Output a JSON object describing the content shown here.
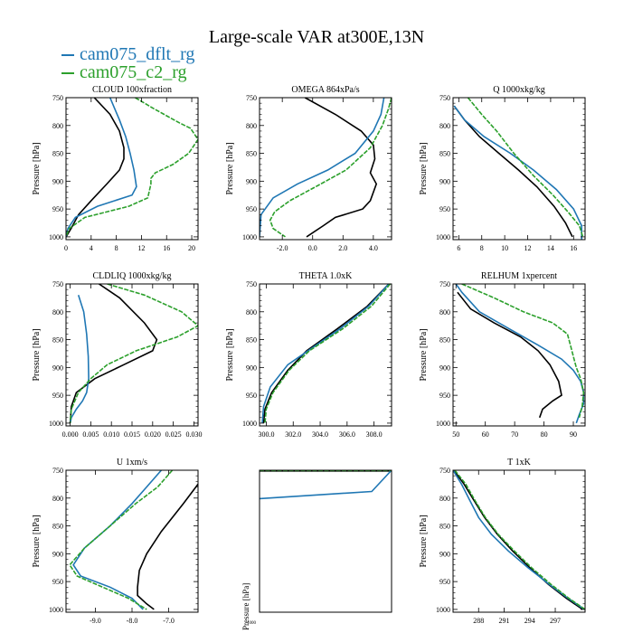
{
  "figure": {
    "title": "Large-scale VAR at300E,13N"
  },
  "legend": [
    {
      "name": "cam075_dflt_rg",
      "color": "#1f77b4"
    },
    {
      "name": "cam075_c2_rg",
      "color": "#2ca02c"
    }
  ],
  "colors": {
    "obs": "#000000",
    "dflt": "#1f77b4",
    "c2": "#2ca02c"
  },
  "chart_data": [
    {
      "type": "line",
      "title": "CLOUD  100xfraction",
      "ylabel": "Pressure [hPa]",
      "xlim": [
        0,
        21
      ],
      "ylim": [
        750,
        1005
      ],
      "xticks": [
        0,
        4,
        8,
        12,
        16,
        20
      ],
      "xtick_labels": [
        "0",
        "4",
        "8",
        "12",
        "16",
        "20"
      ],
      "yticks": [
        750,
        800,
        850,
        900,
        950,
        1000
      ],
      "ytick_labels": [
        "750",
        "800",
        "850",
        "900",
        "950",
        "1000"
      ],
      "series": [
        {
          "key": "obs",
          "x": [
            4.5,
            7,
            8.5,
            9.2,
            9.2,
            8.5,
            6.5,
            4,
            2,
            0.8,
            0
          ],
          "y": [
            750,
            780,
            810,
            840,
            860,
            880,
            905,
            935,
            960,
            985,
            1000
          ]
        },
        {
          "key": "dflt",
          "x": [
            7,
            8.5,
            9.5,
            10.2,
            10.8,
            11.2,
            10.5,
            5,
            1.5,
            0.3,
            0
          ],
          "y": [
            750,
            790,
            820,
            850,
            880,
            910,
            925,
            945,
            965,
            985,
            1000
          ]
        },
        {
          "key": "c2",
          "x": [
            11,
            14,
            18,
            19.8,
            21,
            19.5,
            17,
            14.2,
            13.5,
            13.5,
            13,
            10,
            3,
            0.5,
            0
          ],
          "y": [
            750,
            770,
            795,
            805,
            825,
            850,
            870,
            885,
            895,
            905,
            930,
            945,
            965,
            985,
            1000
          ]
        }
      ]
    },
    {
      "type": "line",
      "title": "OMEGA  864xPa/s",
      "ylabel": "Pressure [hPa]",
      "xlim": [
        -3.5,
        5.2
      ],
      "ylim": [
        750,
        1005
      ],
      "xticks": [
        -2,
        0,
        2,
        4
      ],
      "xtick_labels": [
        "-2.0",
        "0.0",
        "2.0",
        "4.0"
      ],
      "yticks": [
        750,
        800,
        850,
        900,
        950,
        1000
      ],
      "ytick_labels": [
        "750",
        "800",
        "850",
        "900",
        "950",
        "1000"
      ],
      "series": [
        {
          "key": "obs",
          "x": [
            -0.5,
            1.5,
            3.2,
            4.0,
            4.1,
            3.8,
            4.2,
            3.8,
            3.3,
            1.5,
            0.7,
            -0.4
          ],
          "y": [
            750,
            780,
            810,
            835,
            860,
            885,
            905,
            935,
            950,
            965,
            980,
            1000
          ]
        },
        {
          "key": "dflt",
          "x": [
            4.7,
            4.5,
            4.0,
            2.8,
            1.0,
            -1.0,
            -2.6,
            -3.4,
            -3.5
          ],
          "y": [
            750,
            780,
            810,
            850,
            880,
            905,
            930,
            960,
            1000
          ]
        },
        {
          "key": "c2",
          "x": [
            5.2,
            5.0,
            4.6,
            3.8,
            2.2,
            0.2,
            -1.5,
            -2.5,
            -2.8,
            -2.6,
            -1.8
          ],
          "y": [
            750,
            770,
            800,
            840,
            880,
            910,
            935,
            955,
            970,
            985,
            1000
          ]
        }
      ]
    },
    {
      "type": "line",
      "title": "Q  1000xkg/kg",
      "ylabel": "Pressure [hPa]",
      "xlim": [
        5.5,
        17
      ],
      "ylim": [
        750,
        1005
      ],
      "xticks": [
        6,
        8,
        10,
        12,
        14,
        16
      ],
      "xtick_labels": [
        "6",
        "8",
        "10",
        "12",
        "14",
        "16"
      ],
      "yticks": [
        750,
        800,
        850,
        900,
        950,
        1000
      ],
      "ytick_labels": [
        "750",
        "800",
        "850",
        "900",
        "950",
        "1000"
      ],
      "series": [
        {
          "key": "obs",
          "x": [
            5.6,
            6.5,
            7.8,
            9.5,
            11.2,
            12.8,
            14.3,
            15.3,
            15.9
          ],
          "y": [
            765,
            790,
            820,
            850,
            880,
            910,
            945,
            975,
            1000
          ]
        },
        {
          "key": "dflt",
          "x": [
            5.6,
            6.5,
            8.2,
            10.5,
            12.5,
            14.5,
            16.0,
            16.7,
            16.7
          ],
          "y": [
            765,
            790,
            820,
            850,
            880,
            915,
            950,
            980,
            1005
          ]
        },
        {
          "key": "c2",
          "x": [
            6.8,
            8.0,
            9.3,
            10.8,
            12.5,
            14.2,
            15.5,
            16.5,
            16.8
          ],
          "y": [
            750,
            780,
            810,
            850,
            890,
            925,
            955,
            980,
            1000
          ]
        }
      ]
    },
    {
      "type": "line",
      "title": "CLDLIQ  1000xkg/kg",
      "ylabel": "Pressure [hPa]",
      "xlim": [
        -0.001,
        0.031
      ],
      "ylim": [
        750,
        1005
      ],
      "xticks": [
        0,
        0.005,
        0.01,
        0.015,
        0.02,
        0.025,
        0.03
      ],
      "xtick_labels": [
        "0.000",
        "0.005",
        "0.010",
        "0.015",
        "0.020",
        "0.025",
        "0.030"
      ],
      "yticks": [
        750,
        800,
        850,
        900,
        950,
        1000
      ],
      "ytick_labels": [
        "750",
        "800",
        "850",
        "900",
        "950",
        "1000"
      ],
      "series": [
        {
          "key": "obs",
          "x": [
            0.007,
            0.012,
            0.018,
            0.021,
            0.02,
            0.013,
            0.006,
            0.0015,
            0.0003,
            0
          ],
          "y": [
            750,
            775,
            820,
            850,
            870,
            895,
            920,
            945,
            970,
            1000
          ]
        },
        {
          "key": "dflt",
          "x": [
            0.002,
            0.0033,
            0.004,
            0.0044,
            0.0045,
            0.004,
            0.003,
            0.0015,
            0.0003,
            0
          ],
          "y": [
            770,
            800,
            840,
            880,
            920,
            945,
            960,
            975,
            990,
            1000
          ]
        },
        {
          "key": "c2",
          "x": [
            0.009,
            0.018,
            0.027,
            0.031,
            0.026,
            0.016,
            0.009,
            0.005,
            0.002,
            0.0003,
            0
          ],
          "y": [
            750,
            770,
            800,
            825,
            845,
            870,
            895,
            920,
            945,
            975,
            1000
          ]
        }
      ]
    },
    {
      "type": "line",
      "title": "THETA  1.0xK",
      "ylabel": "Pressure [hPa]",
      "xlim": [
        299.5,
        309.3
      ],
      "ylim": [
        750,
        1005
      ],
      "xticks": [
        300,
        302,
        304,
        306,
        308
      ],
      "xtick_labels": [
        "300.0",
        "302.0",
        "304.0",
        "306.0",
        "308.0"
      ],
      "yticks": [
        750,
        800,
        850,
        900,
        950,
        1000
      ],
      "ytick_labels": [
        "750",
        "800",
        "850",
        "900",
        "950",
        "1000"
      ],
      "series": [
        {
          "key": "obs",
          "x": [
            309.1,
            307.5,
            305.3,
            303.0,
            301.6,
            300.4,
            299.9,
            299.8
          ],
          "y": [
            750,
            790,
            830,
            870,
            905,
            945,
            975,
            1000
          ]
        },
        {
          "key": "dflt",
          "x": [
            309.1,
            307.6,
            305.5,
            303.4,
            301.6,
            300.3,
            299.8,
            299.7
          ],
          "y": [
            750,
            790,
            830,
            865,
            895,
            935,
            970,
            1000
          ]
        },
        {
          "key": "c2",
          "x": [
            309.2,
            307.8,
            305.7,
            303.2,
            301.7,
            300.5,
            300.0,
            299.9
          ],
          "y": [
            750,
            790,
            830,
            870,
            905,
            945,
            975,
            1000
          ]
        }
      ]
    },
    {
      "type": "line",
      "title": "RELHUM  1xpercent",
      "ylabel": "Pressure [hPa]",
      "xlim": [
        49,
        94
      ],
      "ylim": [
        750,
        1005
      ],
      "xticks": [
        50,
        60,
        70,
        80,
        90
      ],
      "xtick_labels": [
        "50",
        "60",
        "70",
        "80",
        "90"
      ],
      "yticks": [
        750,
        800,
        850,
        900,
        950,
        1000
      ],
      "ytick_labels": [
        "750",
        "800",
        "850",
        "900",
        "950",
        "1000"
      ],
      "series": [
        {
          "key": "obs",
          "x": [
            50.5,
            55,
            63,
            72,
            78,
            82,
            85,
            86,
            83,
            79.5,
            78.5
          ],
          "y": [
            765,
            795,
            820,
            845,
            870,
            895,
            925,
            950,
            960,
            975,
            990
          ]
        },
        {
          "key": "dflt",
          "x": [
            50,
            52,
            58,
            68,
            78,
            86,
            90,
            92.5,
            93.5,
            93.5,
            92,
            91
          ],
          "y": [
            750,
            765,
            800,
            830,
            860,
            885,
            905,
            925,
            945,
            965,
            985,
            1000
          ]
        },
        {
          "key": "c2",
          "x": [
            52,
            63,
            73,
            83,
            88,
            89,
            90,
            91,
            92.5,
            93.5,
            93,
            92
          ],
          "y": [
            750,
            775,
            800,
            820,
            840,
            860,
            880,
            900,
            920,
            945,
            970,
            990
          ]
        }
      ]
    },
    {
      "type": "line",
      "title": "U  1xm/s",
      "ylabel": "Pressure [hPa]",
      "xlim": [
        -9.8,
        -6.2
      ],
      "ylim": [
        750,
        1005
      ],
      "xticks": [
        -9,
        -8,
        -7
      ],
      "xtick_labels": [
        "-9.0",
        "-8.0",
        "-7.0"
      ],
      "yticks": [
        750,
        800,
        850,
        900,
        950,
        1000
      ],
      "ytick_labels": [
        "750",
        "800",
        "850",
        "900",
        "950",
        "1000"
      ],
      "series": [
        {
          "key": "obs",
          "x": [
            -6.2,
            -6.6,
            -7.2,
            -7.6,
            -7.8,
            -7.85,
            -7.85,
            -7.6,
            -7.4
          ],
          "y": [
            775,
            810,
            860,
            900,
            930,
            960,
            975,
            990,
            1000
          ]
        },
        {
          "key": "dflt",
          "x": [
            -7.2,
            -7.6,
            -8.0,
            -8.6,
            -9.3,
            -9.6,
            -9.4,
            -8.6,
            -8.0,
            -7.7
          ],
          "y": [
            750,
            780,
            810,
            850,
            890,
            920,
            940,
            960,
            980,
            1000
          ]
        },
        {
          "key": "c2",
          "x": [
            -6.9,
            -7.3,
            -7.9,
            -8.6,
            -9.3,
            -9.7,
            -9.5,
            -8.8,
            -8.1,
            -7.6
          ],
          "y": [
            750,
            780,
            810,
            850,
            890,
            920,
            940,
            960,
            980,
            1000
          ]
        }
      ]
    },
    {
      "type": "line",
      "title": "",
      "ylabel": "Pressure [hPa]",
      "xlim": [
        0,
        1
      ],
      "ylim": [
        0,
        1
      ],
      "xticks": [],
      "xtick_labels": [],
      "yticks": [],
      "ytick_labels": [],
      "series": [
        {
          "key": "obs",
          "x": [
            0,
            1
          ],
          "y": [
            0.995,
            0.995
          ]
        },
        {
          "key": "dflt",
          "x": [
            0,
            0.85,
            1
          ],
          "y": [
            0.8,
            0.85,
            1.0
          ]
        },
        {
          "key": "c2",
          "x": [
            0,
            1
          ],
          "y": [
            0.998,
            0.998
          ]
        }
      ],
      "partial_label": "1000"
    },
    {
      "type": "line",
      "title": "T  1xK",
      "ylabel": "Pressure [hPa]",
      "xlim": [
        285,
        300.5
      ],
      "ylim": [
        750,
        1005
      ],
      "xticks": [
        288,
        291,
        294,
        297
      ],
      "xtick_labels": [
        "288",
        "291",
        "294",
        "297"
      ],
      "yticks": [
        750,
        800,
        850,
        900,
        950,
        1000
      ],
      "ytick_labels": [
        "750",
        "800",
        "850",
        "900",
        "950",
        "1000"
      ],
      "series": [
        {
          "key": "obs",
          "x": [
            285.1,
            286.3,
            287.5,
            288.7,
            290.2,
            292.0,
            294.0,
            296.2,
            298.3,
            300.2
          ],
          "y": [
            750,
            775,
            805,
            835,
            865,
            895,
            925,
            955,
            980,
            1000
          ]
        },
        {
          "key": "dflt",
          "x": [
            285.0,
            286.0,
            287.0,
            288.0,
            289.5,
            291.5,
            293.8,
            296.3,
            298.5,
            300.4
          ],
          "y": [
            750,
            775,
            805,
            835,
            865,
            895,
            925,
            955,
            980,
            1000
          ]
        },
        {
          "key": "c2",
          "x": [
            285.2,
            286.5,
            287.6,
            288.8,
            290.3,
            292.2,
            294.2,
            296.5,
            298.6,
            300.5
          ],
          "y": [
            750,
            775,
            805,
            835,
            865,
            895,
            925,
            955,
            980,
            1000
          ]
        }
      ]
    }
  ]
}
